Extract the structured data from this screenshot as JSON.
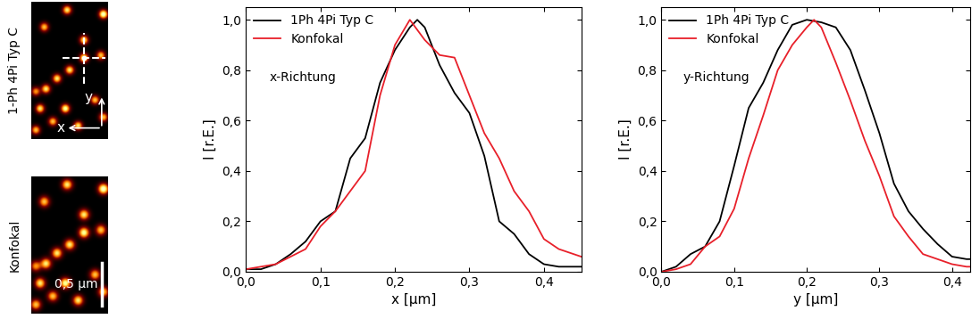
{
  "images": {
    "panels": [
      {
        "label": "1-Ph 4Pi Typ C",
        "type": "4pi"
      },
      {
        "label": "Konfokal",
        "type": "confocal"
      }
    ],
    "field_of_view": [
      0.9,
      1.6
    ],
    "spots": [
      [
        0.42,
        1.5,
        0.8
      ],
      [
        0.85,
        1.45,
        1.0
      ],
      [
        0.15,
        1.3,
        0.7
      ],
      [
        0.62,
        1.15,
        0.8
      ],
      [
        0.62,
        0.94,
        0.9
      ],
      [
        0.82,
        0.97,
        0.7
      ],
      [
        0.45,
        0.8,
        0.8
      ],
      [
        0.3,
        0.7,
        0.8
      ],
      [
        0.17,
        0.58,
        0.8
      ],
      [
        0.05,
        0.55,
        0.6
      ],
      [
        0.75,
        0.45,
        0.7
      ],
      [
        0.4,
        0.35,
        0.9
      ],
      [
        0.1,
        0.35,
        0.8
      ],
      [
        0.25,
        0.2,
        0.7
      ],
      [
        0.55,
        0.15,
        0.8
      ],
      [
        0.05,
        0.1,
        0.7
      ],
      [
        0.85,
        0.25,
        0.7
      ]
    ],
    "profile_center": [
      0.62,
      0.94
    ],
    "axis_labels": {
      "x": "x",
      "y": "y"
    },
    "scale_bar": {
      "length": 0.5,
      "label": "0,5 µm"
    }
  },
  "chart_data": [
    {
      "type": "line",
      "annotation": "x-Richtung",
      "x_label": "x [µm]",
      "y_label": "I [r.E.]",
      "xlim": [
        0,
        0.45
      ],
      "ylim": [
        0,
        1.05
      ],
      "legend": "upper left",
      "xticks": [
        {
          "value": 0.0,
          "label": "0,0"
        },
        {
          "value": 0.1,
          "label": "0,1"
        },
        {
          "value": 0.2,
          "label": "0,2"
        },
        {
          "value": 0.3,
          "label": "0,3"
        },
        {
          "value": 0.4,
          "label": "0,4"
        }
      ],
      "yticks": [
        {
          "value": 0.0,
          "label": "0,0"
        },
        {
          "value": 0.2,
          "label": "0,2"
        },
        {
          "value": 0.4,
          "label": "0,4"
        },
        {
          "value": 0.6,
          "label": "0,6"
        },
        {
          "value": 0.8,
          "label": "0,8"
        },
        {
          "value": 1.0,
          "label": "1,0"
        }
      ],
      "series": [
        {
          "name": "1Ph 4Pi Typ C",
          "color": "#000000",
          "x": [
            0,
            0.02,
            0.04,
            0.06,
            0.08,
            0.1,
            0.12,
            0.14,
            0.16,
            0.18,
            0.2,
            0.22,
            0.23,
            0.24,
            0.26,
            0.28,
            0.3,
            0.32,
            0.34,
            0.36,
            0.38,
            0.4,
            0.42,
            0.45
          ],
          "values": [
            0.01,
            0.01,
            0.03,
            0.07,
            0.12,
            0.2,
            0.24,
            0.45,
            0.53,
            0.75,
            0.88,
            0.97,
            1.0,
            0.97,
            0.82,
            0.71,
            0.63,
            0.46,
            0.2,
            0.15,
            0.07,
            0.03,
            0.02,
            0.02
          ]
        },
        {
          "name": "Konfokal",
          "color": "#e8202a",
          "x": [
            0,
            0.02,
            0.04,
            0.06,
            0.08,
            0.1,
            0.12,
            0.14,
            0.16,
            0.18,
            0.2,
            0.22,
            0.24,
            0.26,
            0.28,
            0.3,
            0.32,
            0.34,
            0.36,
            0.38,
            0.4,
            0.42,
            0.45
          ],
          "values": [
            0.01,
            0.02,
            0.03,
            0.06,
            0.09,
            0.18,
            0.24,
            0.32,
            0.4,
            0.7,
            0.9,
            1.0,
            0.92,
            0.86,
            0.85,
            0.7,
            0.55,
            0.45,
            0.32,
            0.24,
            0.13,
            0.09,
            0.06
          ]
        }
      ]
    },
    {
      "type": "line",
      "annotation": "y-Richtung",
      "x_label": "y [µm]",
      "y_label": "I [r.E.]",
      "xlim": [
        0,
        0.425
      ],
      "ylim": [
        0,
        1.05
      ],
      "legend": "upper left",
      "xticks": [
        {
          "value": 0.0,
          "label": "0,0"
        },
        {
          "value": 0.1,
          "label": "0,1"
        },
        {
          "value": 0.2,
          "label": "0,2"
        },
        {
          "value": 0.3,
          "label": "0,3"
        },
        {
          "value": 0.4,
          "label": "0,4"
        }
      ],
      "yticks": [
        {
          "value": 0.0,
          "label": "0,0"
        },
        {
          "value": 0.2,
          "label": "0,2"
        },
        {
          "value": 0.4,
          "label": "0,4"
        },
        {
          "value": 0.6,
          "label": "0,6"
        },
        {
          "value": 0.8,
          "label": "0,8"
        },
        {
          "value": 1.0,
          "label": "1,0"
        }
      ],
      "series": [
        {
          "name": "1Ph 4Pi Typ C",
          "color": "#000000",
          "x": [
            0,
            0.02,
            0.04,
            0.06,
            0.08,
            0.1,
            0.12,
            0.14,
            0.16,
            0.18,
            0.2,
            0.22,
            0.24,
            0.26,
            0.28,
            0.3,
            0.32,
            0.34,
            0.36,
            0.38,
            0.4,
            0.42,
            0.425
          ],
          "values": [
            0.0,
            0.02,
            0.07,
            0.1,
            0.2,
            0.42,
            0.65,
            0.75,
            0.88,
            0.98,
            1.0,
            0.99,
            0.97,
            0.88,
            0.72,
            0.55,
            0.35,
            0.24,
            0.17,
            0.11,
            0.06,
            0.05,
            0.05
          ]
        },
        {
          "name": "Konfokal",
          "color": "#e8202a",
          "x": [
            0,
            0.02,
            0.04,
            0.06,
            0.08,
            0.1,
            0.12,
            0.14,
            0.16,
            0.18,
            0.2,
            0.21,
            0.22,
            0.24,
            0.26,
            0.28,
            0.3,
            0.32,
            0.34,
            0.36,
            0.38,
            0.4,
            0.42,
            0.425
          ],
          "values": [
            0.0,
            0.01,
            0.03,
            0.1,
            0.14,
            0.25,
            0.45,
            0.62,
            0.8,
            0.9,
            0.97,
            1.0,
            0.97,
            0.83,
            0.68,
            0.52,
            0.38,
            0.22,
            0.14,
            0.07,
            0.05,
            0.03,
            0.02,
            0.02
          ]
        }
      ]
    }
  ]
}
